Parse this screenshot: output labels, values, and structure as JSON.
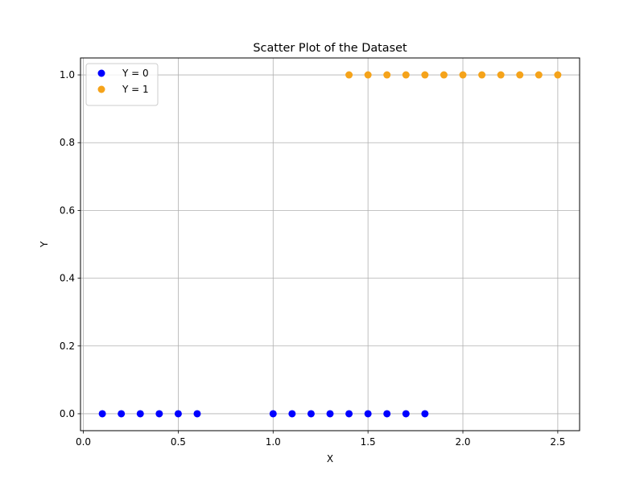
{
  "chart_data": {
    "type": "scatter",
    "title": "Scatter Plot of the Dataset",
    "xlabel": "X",
    "ylabel": "Y",
    "xlim": [
      -0.015,
      2.615
    ],
    "ylim": [
      -0.05,
      1.05
    ],
    "xticks": [
      0.0,
      0.5,
      1.0,
      1.5,
      2.0,
      2.5
    ],
    "xtick_labels": [
      "0.0",
      "0.5",
      "1.0",
      "1.5",
      "2.0",
      "2.5"
    ],
    "yticks": [
      0.0,
      0.2,
      0.4,
      0.6,
      0.8,
      1.0
    ],
    "ytick_labels": [
      "0.0",
      "0.2",
      "0.4",
      "0.6",
      "0.8",
      "1.0"
    ],
    "grid": true,
    "legend_position": "top-left",
    "series": [
      {
        "name": "Y = 0",
        "color": "#0000ff",
        "points": [
          [
            0.1,
            0
          ],
          [
            0.2,
            0
          ],
          [
            0.3,
            0
          ],
          [
            0.4,
            0
          ],
          [
            0.5,
            0
          ],
          [
            0.6,
            0
          ],
          [
            1.0,
            0
          ],
          [
            1.1,
            0
          ],
          [
            1.2,
            0
          ],
          [
            1.3,
            0
          ],
          [
            1.4,
            0
          ],
          [
            1.5,
            0
          ],
          [
            1.6,
            0
          ],
          [
            1.7,
            0
          ],
          [
            1.8,
            0
          ]
        ]
      },
      {
        "name": "Y = 1",
        "color": "#f5a31a",
        "points": [
          [
            1.4,
            1
          ],
          [
            1.5,
            1
          ],
          [
            1.6,
            1
          ],
          [
            1.7,
            1
          ],
          [
            1.8,
            1
          ],
          [
            1.9,
            1
          ],
          [
            2.0,
            1
          ],
          [
            2.1,
            1
          ],
          [
            2.2,
            1
          ],
          [
            2.3,
            1
          ],
          [
            2.4,
            1
          ],
          [
            2.5,
            1
          ]
        ]
      }
    ]
  }
}
